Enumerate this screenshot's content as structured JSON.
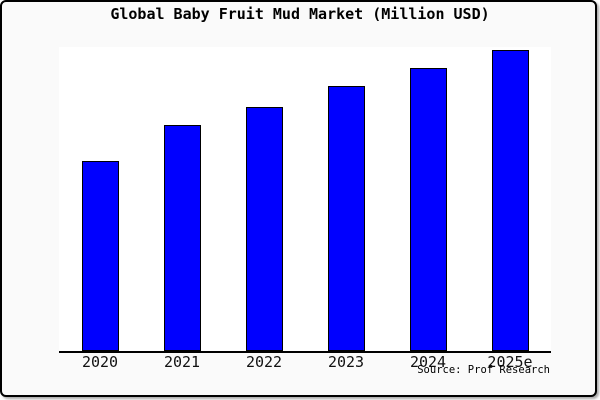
{
  "window": {
    "background_color": "#fafafa",
    "frame_border_color": "#000000",
    "plot_background_color": "#ffffff"
  },
  "chart_data": {
    "type": "bar",
    "title": "Global Baby Fruit Mud Market (Million USD)",
    "categories": [
      "2020",
      "2021",
      "2022",
      "2023",
      "2024",
      "2025e"
    ],
    "values": [
      63,
      75,
      81,
      88,
      94,
      100
    ],
    "value_note": "No y-axis or value labels shown; values are relative bar heights with tallest bar (2025e) = 100.",
    "xlabel": "",
    "ylabel": "",
    "ylim": [
      0,
      101
    ],
    "grid": false,
    "legend": false,
    "bar_color": "#0000ff",
    "bar_border_color": "#000000",
    "axis_color": "#000000"
  },
  "footer": {
    "source_label": "Source: Prof Research"
  }
}
